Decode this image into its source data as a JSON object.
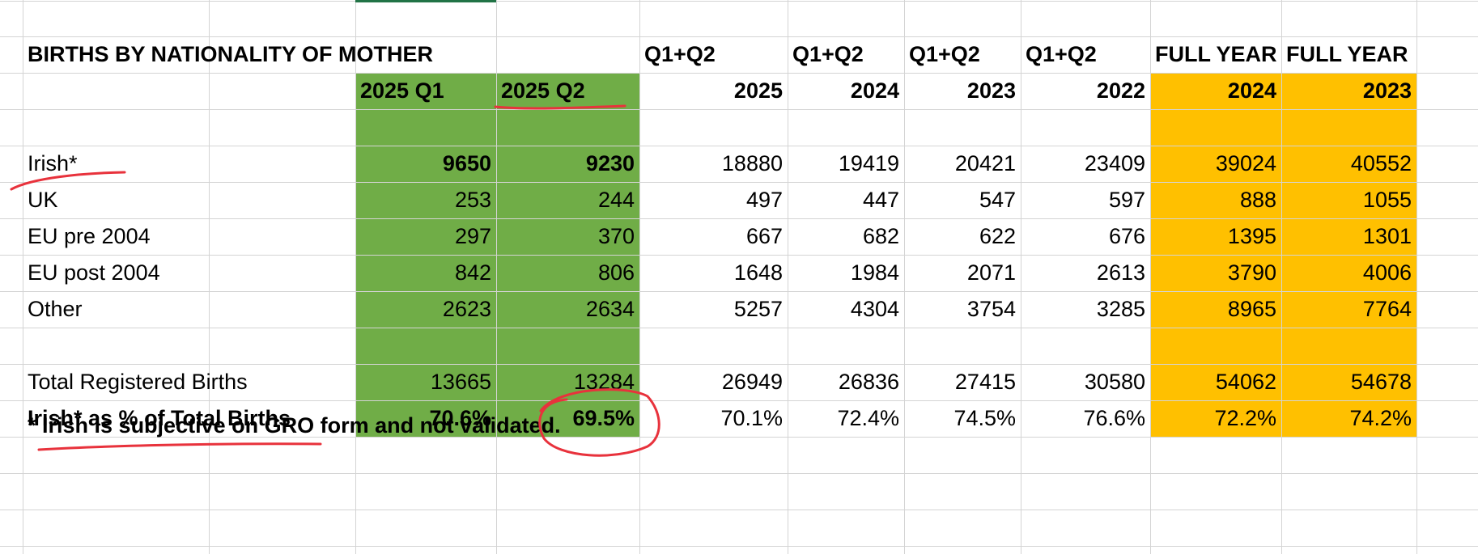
{
  "colors": {
    "q_fill": "#70ad47",
    "full_year_fill": "#ffc000",
    "annotation_ink": "#e8323c",
    "gridline": "#d4d4d4"
  },
  "title": "BIRTHS BY NATIONALITY OF MOTHER",
  "group_headers": [
    "Q1+Q2",
    "Q1+Q2",
    "Q1+Q2",
    "Q1+Q2",
    "FULL YEAR",
    "FULL YEAR"
  ],
  "column_headers": [
    "2025 Q1",
    "2025 Q2",
    "2025",
    "2024",
    "2023",
    "2022",
    "2024",
    "2023"
  ],
  "rows": [
    {
      "label": "Irish*",
      "values": [
        "9650",
        "9230",
        "18880",
        "19419",
        "20421",
        "23409",
        "39024",
        "40552"
      ]
    },
    {
      "label": "UK",
      "values": [
        "253",
        "244",
        "497",
        "447",
        "547",
        "597",
        "888",
        "1055"
      ]
    },
    {
      "label": "EU pre 2004",
      "values": [
        "297",
        "370",
        "667",
        "682",
        "622",
        "676",
        "1395",
        "1301"
      ]
    },
    {
      "label": "EU post 2004",
      "values": [
        "842",
        "806",
        "1648",
        "1984",
        "2071",
        "2613",
        "3790",
        "4006"
      ]
    },
    {
      "label": "Other",
      "values": [
        "2623",
        "2634",
        "5257",
        "4304",
        "3754",
        "3285",
        "8965",
        "7764"
      ]
    }
  ],
  "total": {
    "label": "Total Registered Births",
    "values": [
      "13665",
      "13284",
      "26949",
      "26836",
      "27415",
      "30580",
      "54062",
      "54678"
    ]
  },
  "percent": {
    "label": "Irish*  as % of Total Births",
    "values": [
      "70.6%",
      "69.5%",
      "70.1%",
      "72.4%",
      "74.5%",
      "76.6%",
      "72.2%",
      "74.2%"
    ]
  },
  "footnote": "* Irish is subjective on GRO form and not validated."
}
